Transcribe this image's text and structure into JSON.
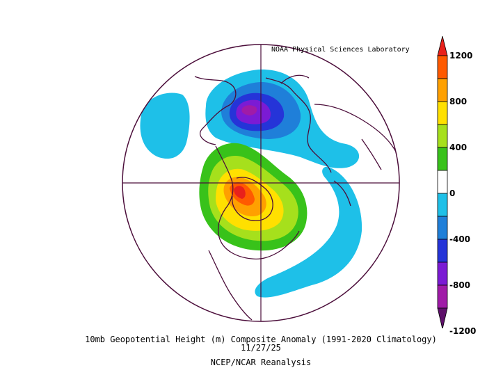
{
  "credit": "NOAA Physical Sciences Laboratory",
  "caption": {
    "line1": "10mb Geopotential Height (m) Composite Anomaly (1991-2020 Climatology)",
    "line2": "11/27/25",
    "line3": "NCEP/NCAR Reanalysis"
  },
  "colorbar": {
    "ticks": [
      "1200",
      "800",
      "400",
      "0",
      "-400",
      "-800",
      "-1200"
    ],
    "levels": [
      {
        "min": 1200,
        "max": null,
        "color": "#e8211b"
      },
      {
        "min": 1000,
        "max": 1200,
        "color": "#ff5a00"
      },
      {
        "min": 800,
        "max": 1000,
        "color": "#ffa000"
      },
      {
        "min": 600,
        "max": 800,
        "color": "#ffe000"
      },
      {
        "min": 400,
        "max": 600,
        "color": "#a6e01c"
      },
      {
        "min": 200,
        "max": 400,
        "color": "#38c21a"
      },
      {
        "min": -200,
        "max": 200,
        "color": "#ffffff"
      },
      {
        "min": -400,
        "max": -200,
        "color": "#1ec0e8"
      },
      {
        "min": -600,
        "max": -400,
        "color": "#1f7fd9"
      },
      {
        "min": -800,
        "max": -600,
        "color": "#2534d8"
      },
      {
        "min": -1000,
        "max": -800,
        "color": "#7b1bd4"
      },
      {
        "min": -1200,
        "max": -1000,
        "color": "#a01ba8"
      },
      {
        "min": null,
        "max": -1200,
        "color": "#5e0f6a"
      }
    ]
  },
  "map": {
    "projection": "north-polar-stereographic",
    "outline_color": "#4b0d3a"
  }
}
